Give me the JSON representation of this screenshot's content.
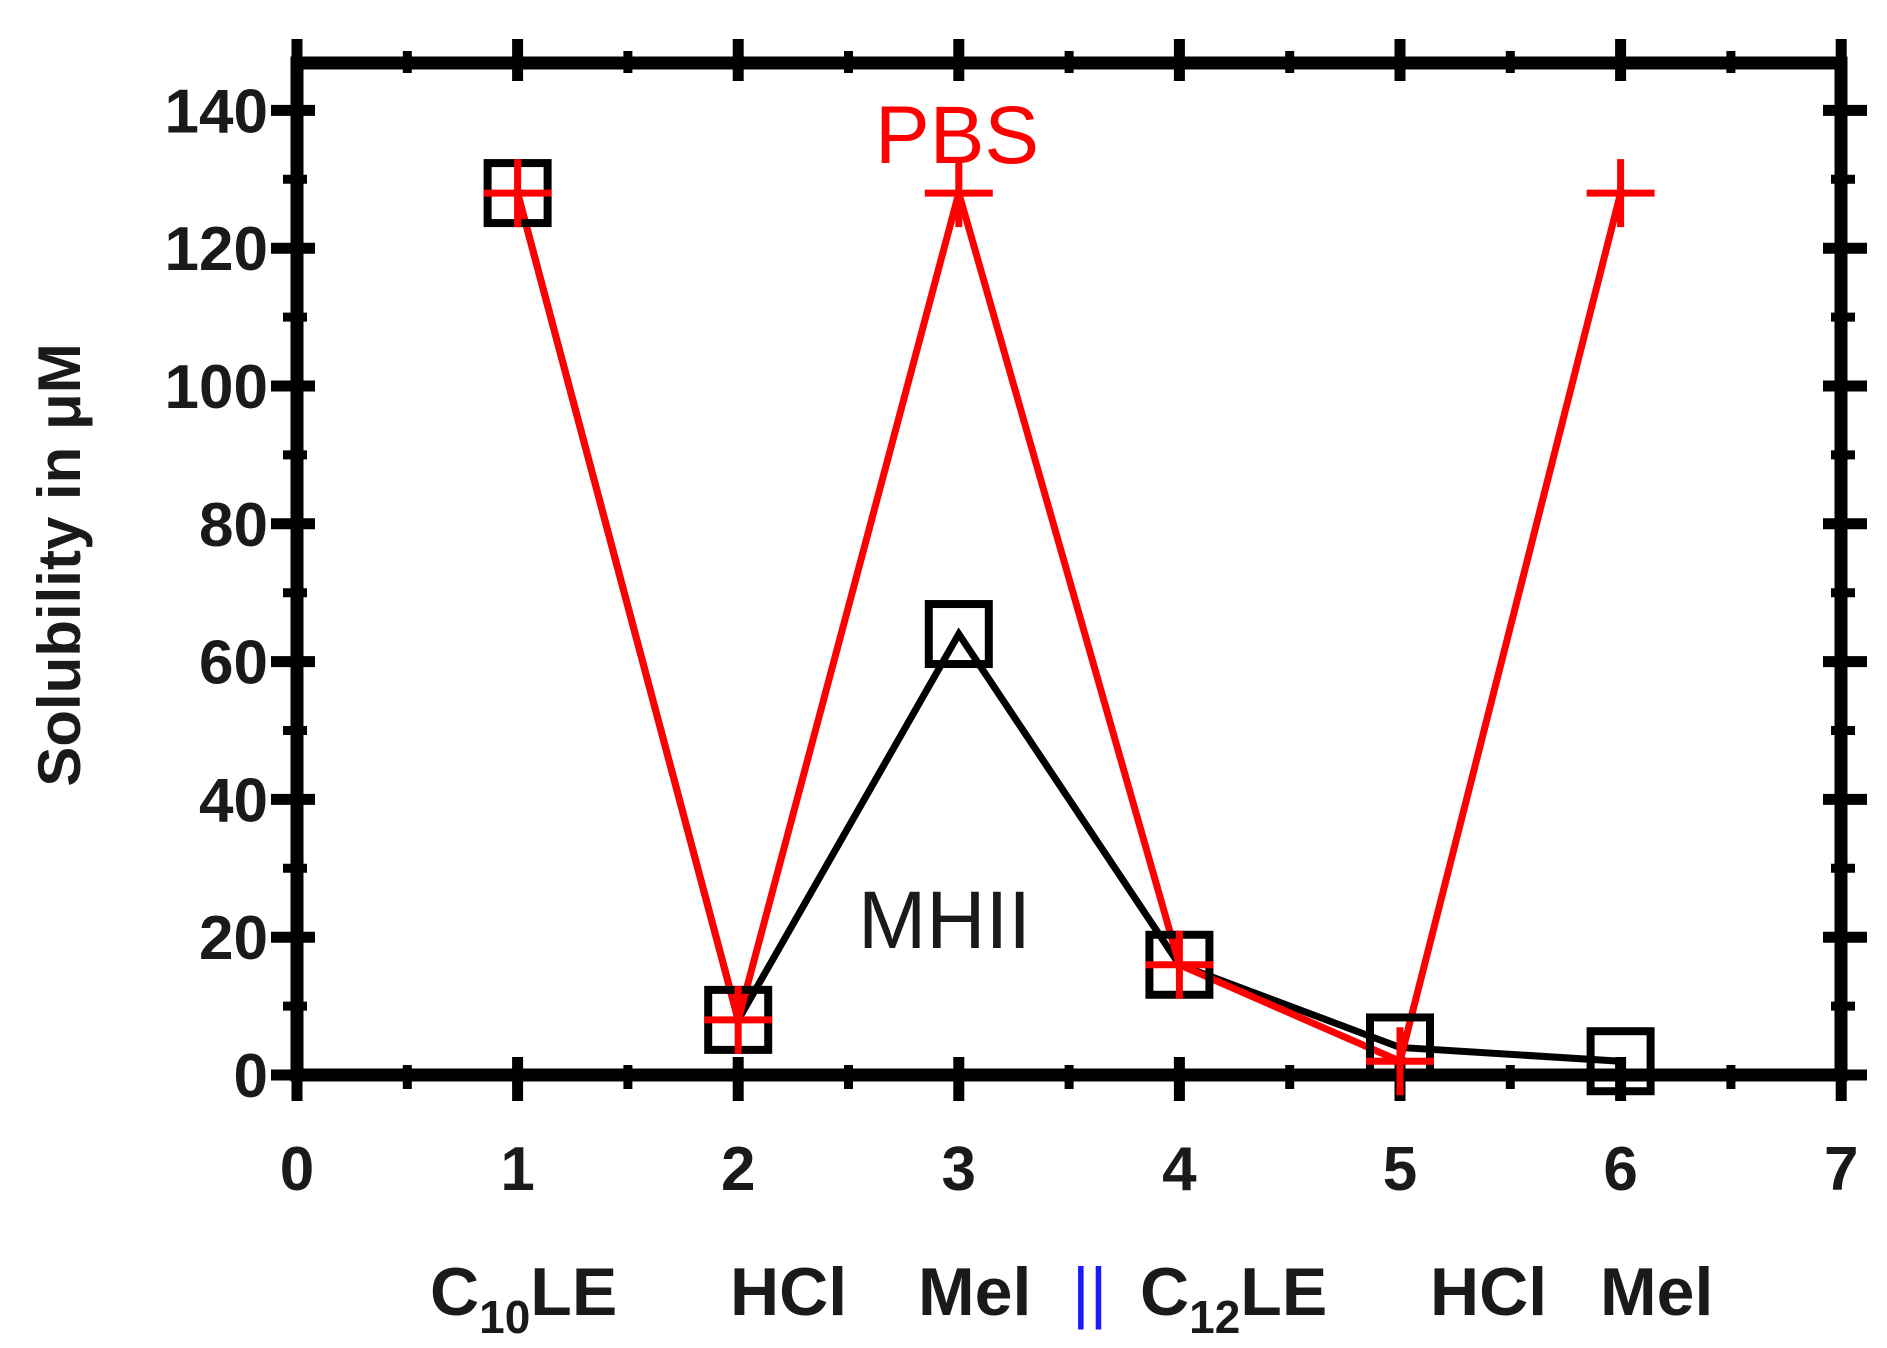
{
  "chart_data": {
    "type": "line",
    "title": "",
    "xlabel": "",
    "ylabel": "Solubility in μM",
    "xlim": [
      0,
      7
    ],
    "ylim": [
      0,
      150
    ],
    "x_ticks": [
      "0",
      "1",
      "2",
      "3",
      "4",
      "5",
      "6",
      "7"
    ],
    "y_ticks": [
      "0",
      "20",
      "40",
      "60",
      "80",
      "100",
      "120",
      "140"
    ],
    "grid": false,
    "series": [
      {
        "name": "MHII",
        "color": "#000000",
        "marker": "open-square",
        "x": [
          1,
          2,
          3,
          4,
          5,
          6
        ],
        "y": [
          128,
          8,
          64,
          16,
          4,
          2
        ]
      },
      {
        "name": "PBS",
        "color": "#ff0000",
        "marker": "plus",
        "x": [
          1,
          2,
          3,
          4,
          5,
          6
        ],
        "y": [
          128,
          8,
          128,
          16,
          2,
          128
        ]
      }
    ],
    "category_labels": {
      "left": [
        {
          "main": "C",
          "sub": "10",
          "rest": "LE"
        },
        {
          "main": "HCl"
        },
        {
          "main": "Mel"
        }
      ],
      "separator": "||",
      "separator_color": "#1a1aff",
      "right": [
        {
          "main": "C",
          "sub": "12",
          "rest": "LE"
        },
        {
          "main": "HCl"
        },
        {
          "main": "Mel"
        }
      ]
    }
  }
}
